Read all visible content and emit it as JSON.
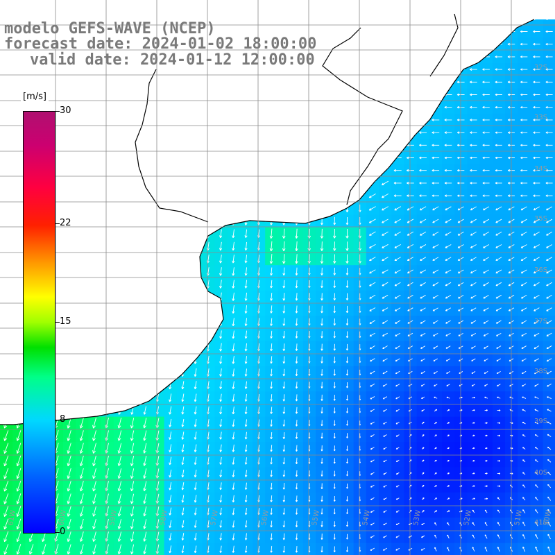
{
  "title": {
    "line1": "modelo GEFS-WAVE (NCEP)",
    "line2": "forecast date: 2024-01-02 18:00:00",
    "line3": "valid date: 2024-01-12 12:00:00"
  },
  "colorbar": {
    "unit": "[m/s]",
    "ticks": [
      {
        "label": "30",
        "value": 30
      },
      {
        "label": "22",
        "value": 22
      },
      {
        "label": "15",
        "value": 15
      },
      {
        "label": "8",
        "value": 8
      },
      {
        "label": "0",
        "value": 0
      }
    ],
    "range": [
      0,
      30
    ],
    "colors": [
      "#0000ff",
      "#0060ff",
      "#00d8ff",
      "#00ff88",
      "#00e000",
      "#a0ff00",
      "#ffff00",
      "#ff9a00",
      "#ff2000",
      "#cc0070",
      "#b01070"
    ]
  },
  "lat_labels": [
    "32S",
    "33S",
    "34S",
    "35S",
    "36S",
    "37S",
    "38S",
    "39S",
    "40S",
    "41S"
  ],
  "lon_labels": [
    "61W",
    "60W",
    "59W",
    "58W",
    "57W",
    "56W",
    "55W",
    "54W",
    "53W",
    "52W",
    "51W",
    "50W"
  ],
  "colors": {
    "land": "#ffffff",
    "coast": "#000000",
    "grid": "#8a8a8a",
    "arrow": "#ffffff",
    "title": "#7a7a7a"
  }
}
